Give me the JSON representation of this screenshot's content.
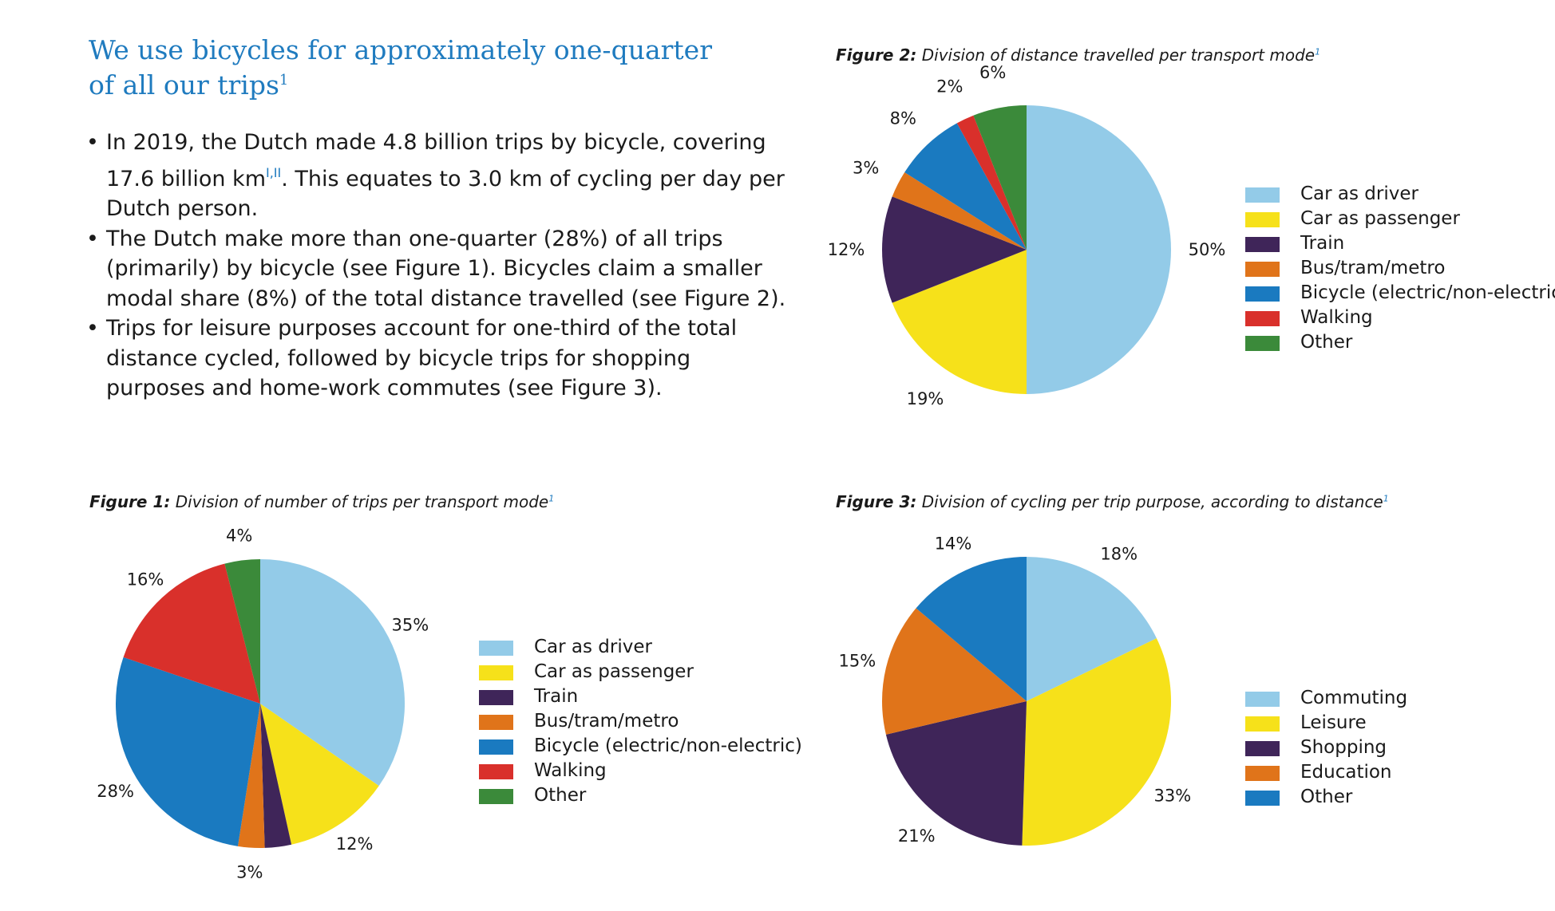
{
  "heading": {
    "text": "We use bicycles for approximately one-quarter of all our trips",
    "sup": "1"
  },
  "bullets": [
    {
      "pre": "In 2019, the Dutch made 4.8 billion trips by bicycle, covering 17.6 billion km",
      "sup": "I,II",
      "post": ". This equates to 3.0 km of cycling per day per Dutch person."
    },
    {
      "text": "The Dutch make more than one-quarter (28%) of all trips (primarily) by bicycle (see Figure 1). Bicycles claim a smaller modal share (8%) of the total distance travelled (see Figure 2)."
    },
    {
      "text": "Trips for leisure purposes account for one-third of the total distance cycled, followed by bicycle trips for shopping purposes and home-work commutes (see Figure 3)."
    }
  ],
  "colors": {
    "car_driver": "#93cbe8",
    "car_passenger": "#f6e11a",
    "train": "#3f2559",
    "bus_tram_metro": "#e0741a",
    "bicycle": "#1a7ac0",
    "walking": "#d9302b",
    "other": "#3b8a3a",
    "heading_blue": "#1f7bbf"
  },
  "figures": {
    "fig1": {
      "label": "Figure 1:",
      "title": "Division of number of trips per transport mode",
      "sup": "1"
    },
    "fig2": {
      "label": "Figure 2:",
      "title": "Division of distance travelled per transport mode",
      "sup": "1"
    },
    "fig3": {
      "label": "Figure 3:",
      "title": "Division of cycling per trip purpose, according to distance",
      "sup": "1"
    }
  },
  "chart_data": [
    {
      "type": "pie",
      "id": "fig1",
      "title": "Figure 1: Division of number of trips per transport mode",
      "categories": [
        "Car as driver",
        "Car as passenger",
        "Train",
        "Bus/tram/metro",
        "Bicycle (electric/non-electric)",
        "Walking",
        "Other"
      ],
      "values": [
        35,
        12,
        3,
        3,
        28,
        16,
        4
      ],
      "labels": [
        "35%",
        "12%",
        "",
        "3%",
        "28%",
        "16%",
        "4%"
      ],
      "colors": [
        "#93cbe8",
        "#f6e11a",
        "#3f2559",
        "#e0741a",
        "#1a7ac0",
        "#d9302b",
        "#3b8a3a"
      ],
      "legend": "right"
    },
    {
      "type": "pie",
      "id": "fig2",
      "title": "Figure 2: Division of distance travelled per transport mode",
      "categories": [
        "Car as driver",
        "Car as passenger",
        "Train",
        "Bus/tram/metro",
        "Bicycle (electric/non-electric)",
        "Walking",
        "Other"
      ],
      "values": [
        50,
        19,
        12,
        3,
        8,
        2,
        6
      ],
      "labels": [
        "50%",
        "19%",
        "12%",
        "3%",
        "8%",
        "2%",
        "6%"
      ],
      "colors": [
        "#93cbe8",
        "#f6e11a",
        "#3f2559",
        "#e0741a",
        "#1a7ac0",
        "#d9302b",
        "#3b8a3a"
      ],
      "legend": "right"
    },
    {
      "type": "pie",
      "id": "fig3",
      "title": "Figure 3: Division of cycling per trip purpose, according to distance",
      "categories": [
        "Commuting",
        "Leisure",
        "Shopping",
        "Education",
        "Other"
      ],
      "values": [
        18,
        33,
        21,
        15,
        14
      ],
      "labels": [
        "18%",
        "33%",
        "21%",
        "15%",
        "14%"
      ],
      "colors": [
        "#93cbe8",
        "#f6e11a",
        "#3f2559",
        "#e0741a",
        "#1a7ac0"
      ],
      "legend": "right"
    }
  ]
}
